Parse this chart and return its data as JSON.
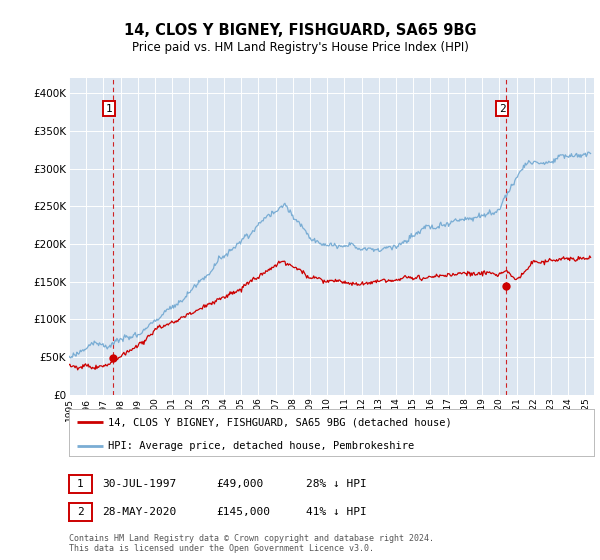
{
  "title": "14, CLOS Y BIGNEY, FISHGUARD, SA65 9BG",
  "subtitle": "Price paid vs. HM Land Registry's House Price Index (HPI)",
  "ylabel_ticks": [
    "£0",
    "£50K",
    "£100K",
    "£150K",
    "£200K",
    "£250K",
    "£300K",
    "£350K",
    "£400K"
  ],
  "ytick_values": [
    0,
    50000,
    100000,
    150000,
    200000,
    250000,
    300000,
    350000,
    400000
  ],
  "ylim": [
    0,
    420000
  ],
  "xlim_start": 1995.0,
  "xlim_end": 2025.5,
  "background_color": "#dce6f1",
  "red_color": "#cc0000",
  "blue_color": "#7aadd4",
  "grid_color": "#ffffff",
  "annotation_box_color": "#cc0000",
  "legend_label_red": "14, CLOS Y BIGNEY, FISHGUARD, SA65 9BG (detached house)",
  "legend_label_blue": "HPI: Average price, detached house, Pembrokeshire",
  "point1_label": "1",
  "point1_date": "30-JUL-1997",
  "point1_price": "£49,000",
  "point1_hpi": "28% ↓ HPI",
  "point1_x": 1997.58,
  "point1_y": 49000,
  "point2_label": "2",
  "point2_date": "28-MAY-2020",
  "point2_price": "£145,000",
  "point2_hpi": "41% ↓ HPI",
  "point2_x": 2020.41,
  "point2_y": 145000,
  "footer": "Contains HM Land Registry data © Crown copyright and database right 2024.\nThis data is licensed under the Open Government Licence v3.0."
}
